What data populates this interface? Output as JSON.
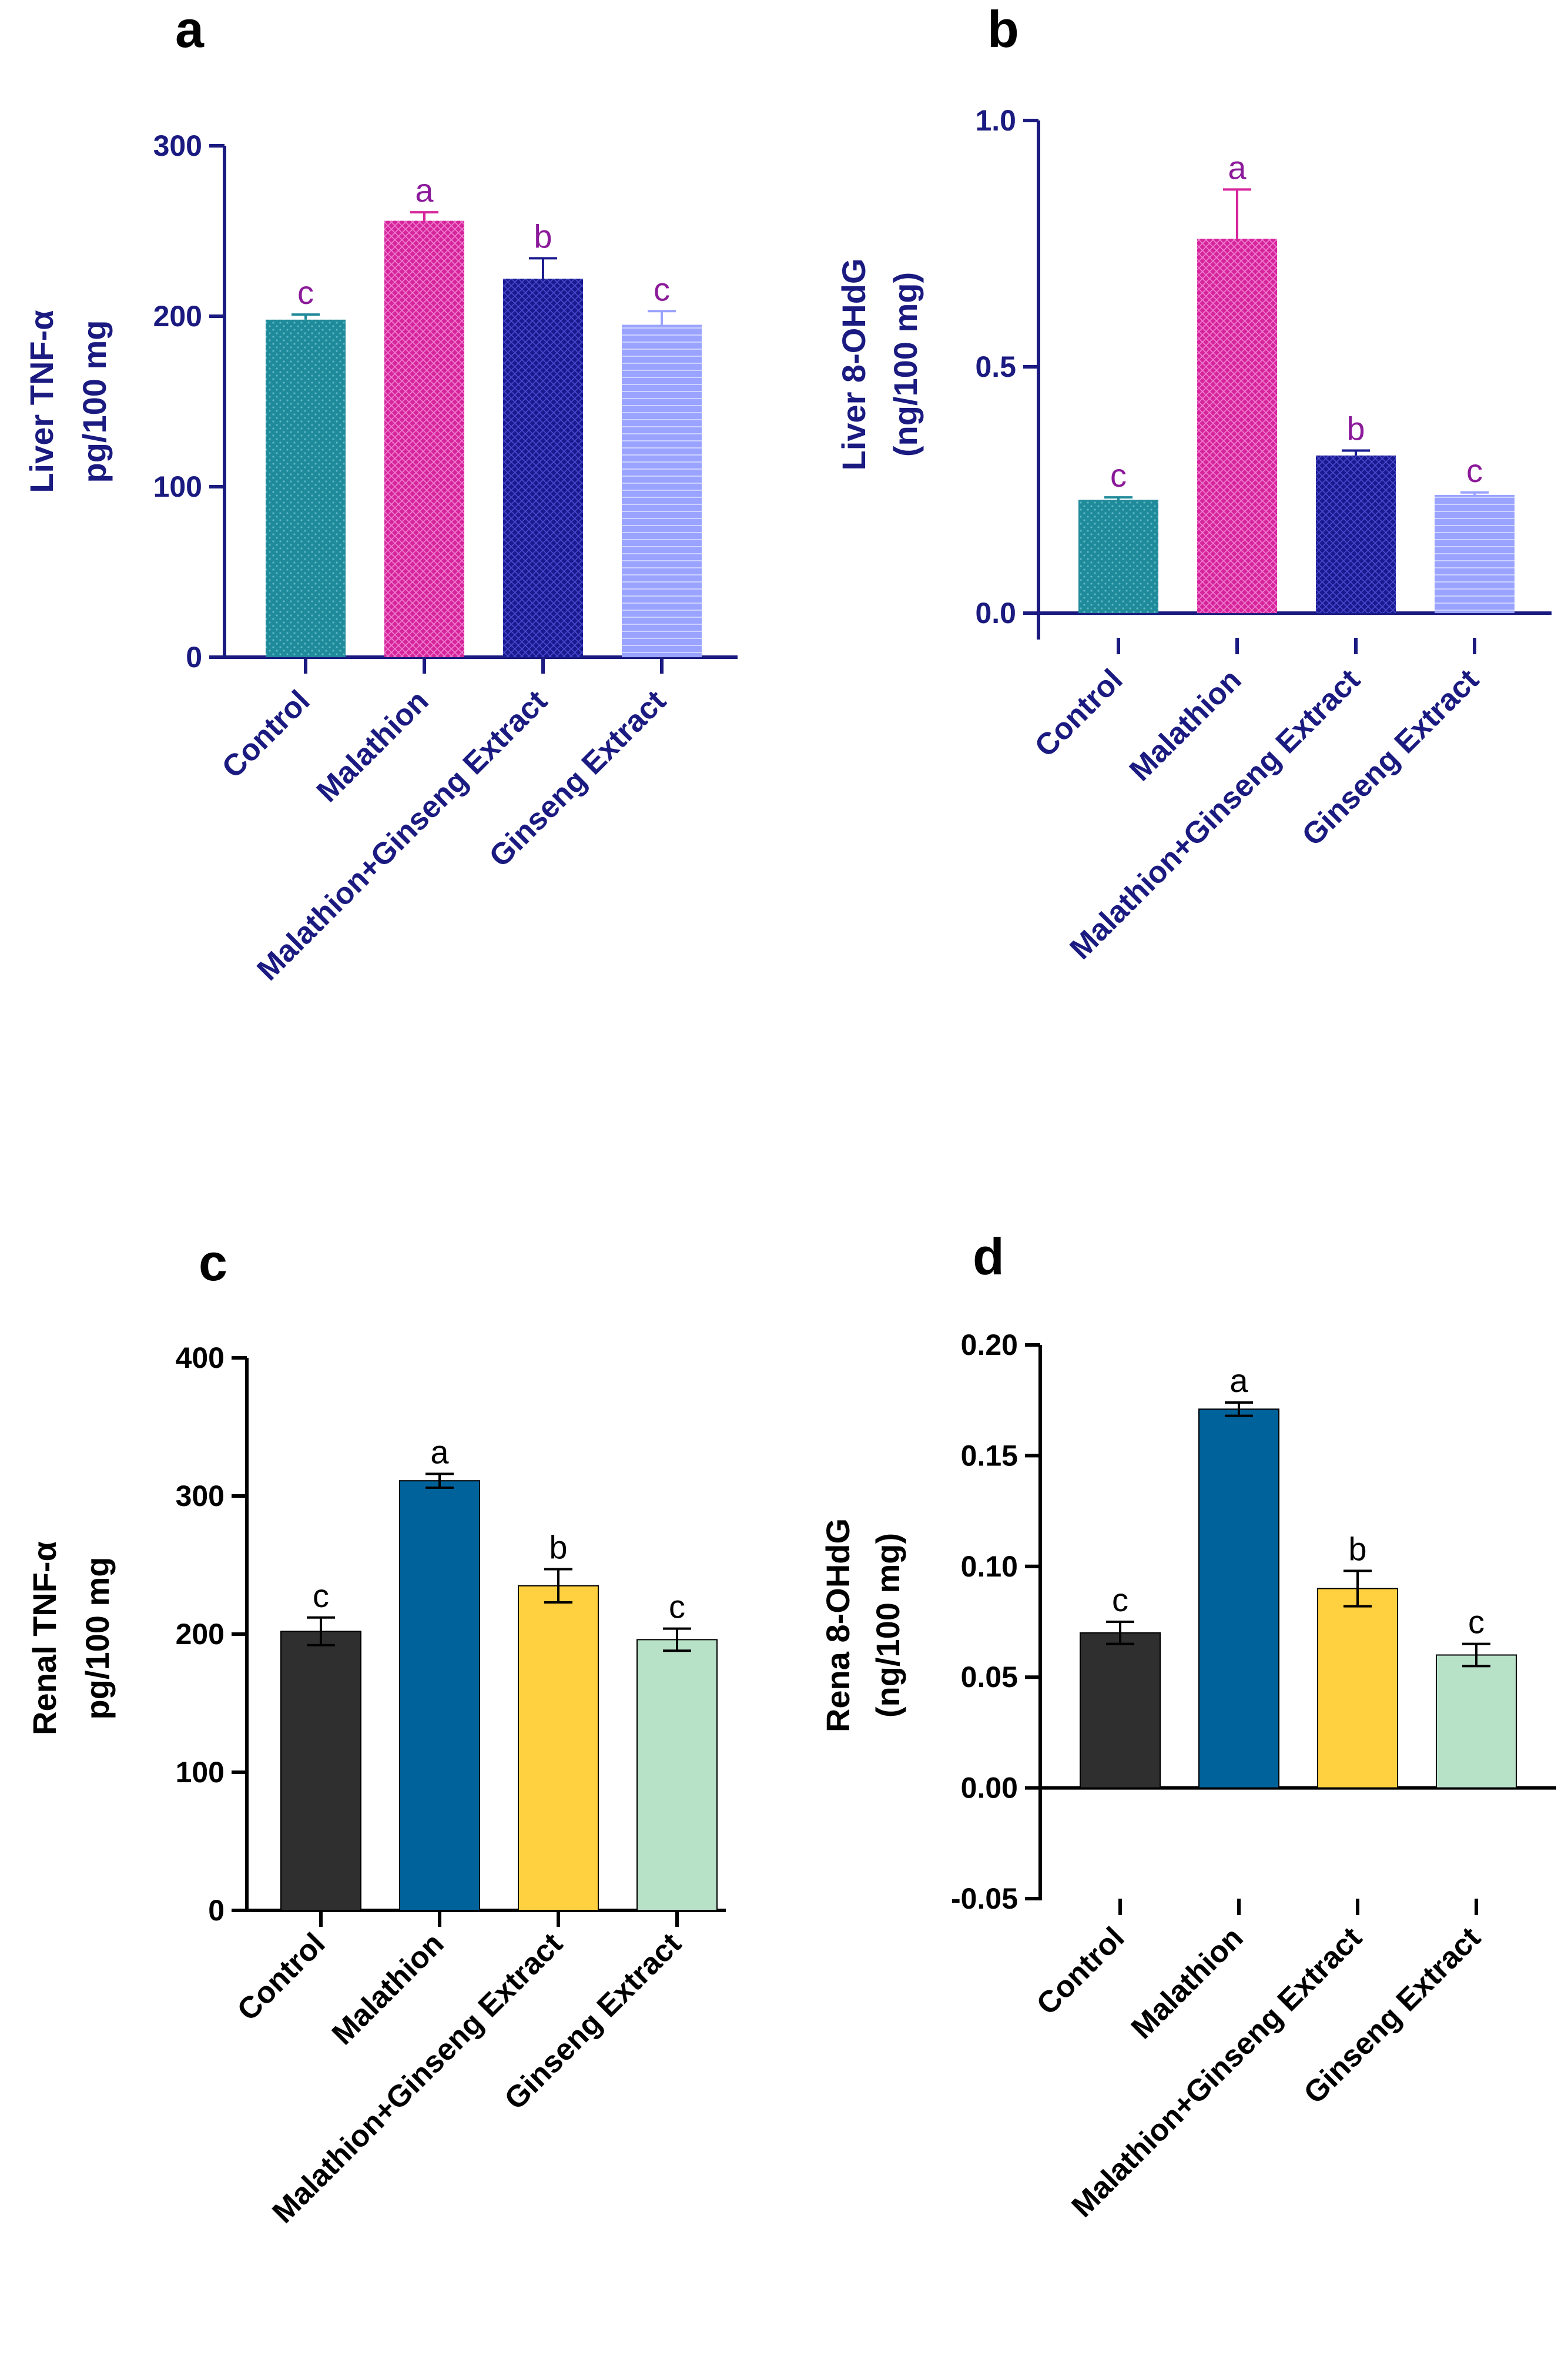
{
  "figure": {
    "panels": [
      "a",
      "b",
      "c",
      "d"
    ]
  },
  "chart_data": [
    {
      "panel": "a",
      "type": "bar",
      "title": "",
      "xlabel": "",
      "ylabel": [
        "Liver TNF-α",
        "pg/100 mg"
      ],
      "categories": [
        "Control",
        "Malathion",
        "Malathion+Ginseng Extract",
        "Ginseng Extract"
      ],
      "values": [
        198,
        256,
        222,
        195
      ],
      "errors": [
        3,
        5,
        12,
        8
      ],
      "letters": [
        "c",
        "a",
        "b",
        "c"
      ],
      "ylim": [
        0,
        300
      ],
      "yticks": [
        0,
        100,
        200,
        300
      ],
      "ytick_labels": [
        "0",
        "100",
        "200",
        "300"
      ],
      "colors": [
        "#1f8a9a",
        "#d6259c",
        "#1a1a8f",
        "#9aa3ff"
      ],
      "patterns": [
        "dots",
        "cross",
        "cross",
        "lines"
      ],
      "axis_color": "#1a1a80",
      "letter_color": "#8b1a9a"
    },
    {
      "panel": "b",
      "type": "bar",
      "title": "",
      "xlabel": "",
      "ylabel": [
        "Liver 8-OHdG",
        "(ng/100 mg)"
      ],
      "categories": [
        "Control",
        "Malathion",
        "Malathion+Ginseng Extract",
        "Ginseng Extract"
      ],
      "values": [
        0.23,
        0.76,
        0.32,
        0.24
      ],
      "errors": [
        0.005,
        0.1,
        0.01,
        0.005
      ],
      "letters": [
        "c",
        "a",
        "b",
        "c"
      ],
      "ylim": [
        -0.05,
        1.0
      ],
      "yticks": [
        0.0,
        0.5,
        1.0
      ],
      "ytick_labels": [
        "0.0",
        "0.5",
        "1.0"
      ],
      "colors": [
        "#1f8a9a",
        "#d6259c",
        "#1a1a8f",
        "#9aa3ff"
      ],
      "patterns": [
        "dots",
        "cross",
        "cross",
        "lines"
      ],
      "axis_color": "#1a1a80",
      "letter_color": "#8b1a9a"
    },
    {
      "panel": "c",
      "type": "bar",
      "title": "",
      "xlabel": "",
      "ylabel": [
        "Renal TNF-α",
        "pg/100 mg"
      ],
      "categories": [
        "Control",
        "Malathion",
        "Malathion+Ginseng Extract",
        "Ginseng Extract"
      ],
      "values": [
        202,
        311,
        235,
        196
      ],
      "errors": [
        10,
        5,
        12,
        8
      ],
      "letters": [
        "c",
        "a",
        "b",
        "c"
      ],
      "ylim": [
        0,
        400
      ],
      "yticks": [
        0,
        100,
        200,
        300,
        400
      ],
      "ytick_labels": [
        "0",
        "100",
        "200",
        "300",
        "400"
      ],
      "colors": [
        "#2f2f2f",
        "#00629a",
        "#ffd040",
        "#b8e2c8"
      ],
      "patterns": [
        "none",
        "none",
        "none",
        "none"
      ],
      "axis_color": "#000000",
      "letter_color": "#000000"
    },
    {
      "panel": "d",
      "type": "bar",
      "title": "",
      "xlabel": "",
      "ylabel": [
        "Rena 8-OHdG",
        "(ng/100 mg)"
      ],
      "categories": [
        "Control",
        "Malathion",
        "Malathion+Ginseng Extract",
        "Ginseng Extract"
      ],
      "values": [
        0.07,
        0.171,
        0.09,
        0.06
      ],
      "errors": [
        0.005,
        0.003,
        0.008,
        0.005
      ],
      "letters": [
        "c",
        "a",
        "b",
        "c"
      ],
      "ylim": [
        -0.05,
        0.2
      ],
      "yticks": [
        -0.05,
        0.0,
        0.05,
        0.1,
        0.15,
        0.2
      ],
      "ytick_labels": [
        "-0.05",
        "0.00",
        "0.05",
        "0.10",
        "0.15",
        "0.20"
      ],
      "colors": [
        "#2f2f2f",
        "#00629a",
        "#ffd040",
        "#b8e2c8"
      ],
      "patterns": [
        "none",
        "none",
        "none",
        "none"
      ],
      "axis_color": "#000000",
      "letter_color": "#000000"
    }
  ]
}
